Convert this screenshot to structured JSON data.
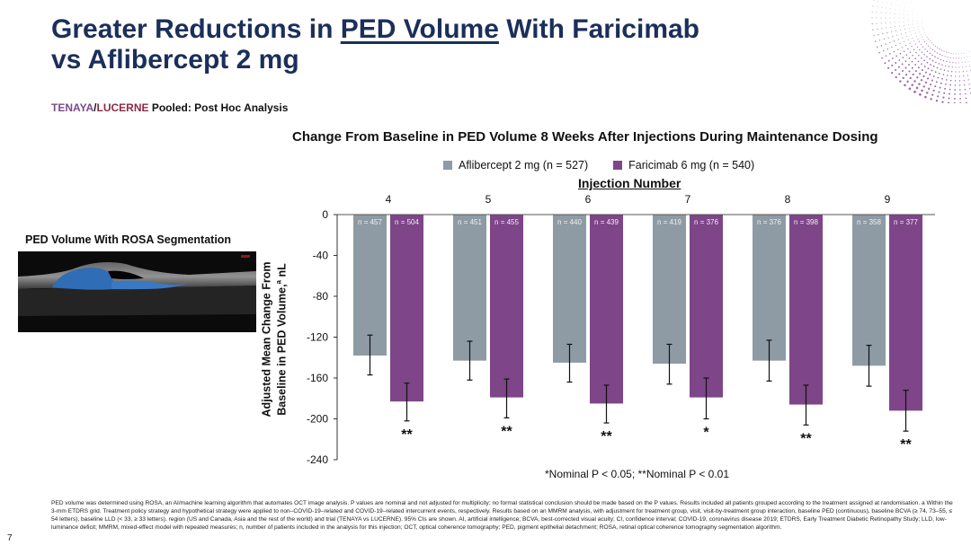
{
  "slide": {
    "title_parts": [
      "Greater Reductions in ",
      "PED Volume",
      " With Faricimab"
    ],
    "title_line2": "vs Aflibercept 2 mg",
    "subtitle_tenaya": "TENAYA",
    "subtitle_slash": "/",
    "subtitle_lucerne": "LUCERNE",
    "subtitle_rest": " Pooled: Post Hoc Analysis",
    "image_title": "PED Volume With ROSA Segmentation",
    "slide_number": "7",
    "footnote": "PED volume was determined using ROSA, an AI/machine learning algorithm that automates OCT image analysis. P values are nominal and not adjusted for multiplicity; no formal statistical conclusion should be made based on the P values. Results included all patients grouped according to the treatment assigned at randomisation. a Within the 3-mm ETDRS grid. Treatment policy strategy and hypothetical strategy were applied to non–COVID-19–related and COVID-19–related intercurrent events, respectively. Results based on an MMRM analysis, with adjustment for treatment group, visit, visit-by-treatment group interaction, baseline PED (continuous), baseline BCVA (≥ 74, 73–55, ≤ 54 letters), baseline LLD (< 33, ≥ 33 letters), region (US and Canada, Asia and the rest of the world) and trial (TENAYA vs LUCERNE). 95% CIs are shown. AI, artificial intelligence; BCVA, best-corrected visual acuity; CI, confidence interval; COVID-19, coronavirus disease 2019; ETDRS, Early Treatment Diabetic Retinopathy Study; LLD, low-luminance deficit; MMRM, mixed-effect model with repeated measures; n, number of patients included in the analysis for this injection; OCT, optical coherence tomography; PED, pigment epithelial detachment; ROSA, retinal optical coherence tomography segmentation algorithm."
  },
  "colors": {
    "title": "#1b2f5a",
    "aflibercept": "#8e9ba5",
    "faricimab": "#7e4588"
  },
  "chart_data": {
    "type": "bar",
    "title": "Change From Baseline in PED Volume 8 Weeks After Injections During Maintenance Dosing",
    "xlabel": "Injection Number",
    "ylabel_line1": "Adjusted  Mean Change From",
    "ylabel_line2": "Baseline in PED Volume,",
    "ylabel_sup": "a",
    "ylabel_unit": " nL",
    "ylim": [
      -240,
      0
    ],
    "yticks": [
      0,
      -40,
      -80,
      -120,
      -160,
      -200,
      -240
    ],
    "categories": [
      "4",
      "5",
      "6",
      "7",
      "8",
      "9"
    ],
    "legend_position": "top",
    "series": [
      {
        "name": "Aflibercept 2 mg (n = 527)",
        "values": [
          -138,
          -143,
          -145,
          -146,
          -143,
          -148
        ],
        "ci_upper": [
          -118,
          -124,
          -127,
          -127,
          -123,
          -128
        ],
        "ci_lower": [
          -157,
          -162,
          -164,
          -166,
          -163,
          -168
        ],
        "n_labels": [
          "n = 457",
          "n = 451",
          "n = 440",
          "n = 419",
          "n = 376",
          "n = 358"
        ]
      },
      {
        "name": "Faricimab 6 mg (n = 540)",
        "values": [
          -183,
          -179,
          -185,
          -179,
          -186,
          -192
        ],
        "ci_upper": [
          -165,
          -161,
          -167,
          -160,
          -167,
          -172
        ],
        "ci_lower": [
          -202,
          -199,
          -204,
          -200,
          -206,
          -212
        ],
        "n_labels": [
          "n = 504",
          "n = 455",
          "n = 439",
          "n = 376",
          "n = 398",
          "n = 377"
        ],
        "significance": [
          "**",
          "**",
          "**",
          "*",
          "**",
          "**"
        ]
      }
    ],
    "p_note": "*Nominal P < 0.05; **Nominal P < 0.01"
  }
}
